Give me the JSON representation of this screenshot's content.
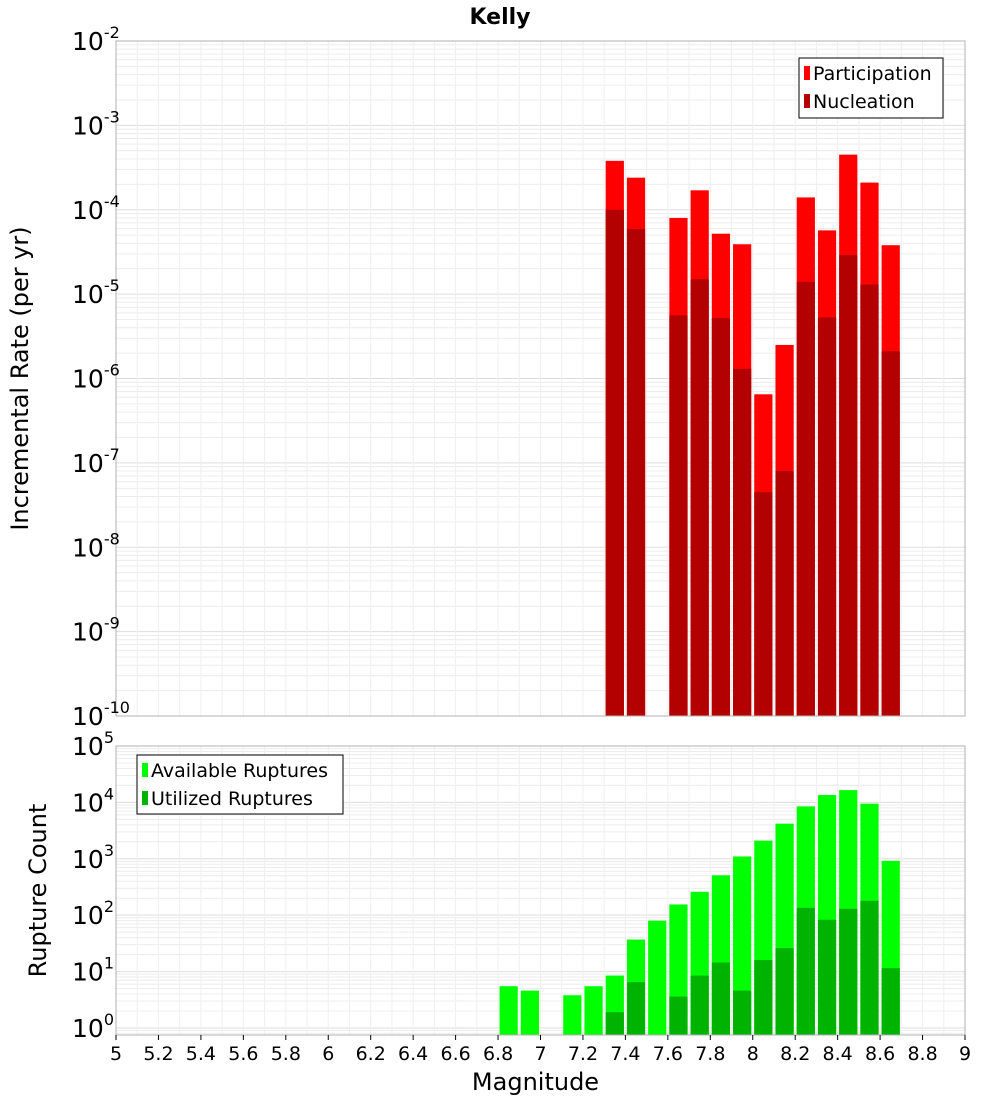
{
  "chart_data": [
    {
      "type": "bar",
      "title": "Kelly",
      "ylabel": "Incremental Rate (per yr)",
      "xlabel": "",
      "yscale": "log",
      "ylim": [
        1e-10,
        0.01
      ],
      "xlim": [
        5,
        9
      ],
      "bin_width": 0.1,
      "y_ticks": [
        {
          "base": "10",
          "exp": "-2"
        },
        {
          "base": "10",
          "exp": "-3"
        },
        {
          "base": "10",
          "exp": "-4"
        },
        {
          "base": "10",
          "exp": "-5"
        },
        {
          "base": "10",
          "exp": "-6"
        },
        {
          "base": "10",
          "exp": "-7"
        },
        {
          "base": "10",
          "exp": "-8"
        },
        {
          "base": "10",
          "exp": "-9"
        },
        {
          "base": "10",
          "exp": "-10"
        }
      ],
      "legend": {
        "position": "top-right",
        "entries": [
          "Participation",
          "Nucleation"
        ]
      },
      "x": [
        7.35,
        7.45,
        7.65,
        7.75,
        7.85,
        7.95,
        8.05,
        8.15,
        8.25,
        8.35,
        8.45,
        8.55,
        8.65
      ],
      "series": [
        {
          "name": "Participation",
          "color": "#ff0000",
          "values": [
            0.00038,
            0.00024,
            8e-05,
            0.00017,
            5.2e-05,
            3.9e-05,
            6.5e-07,
            2.5e-06,
            0.00014,
            5.7e-05,
            0.00045,
            0.00021,
            3.8e-05
          ]
        },
        {
          "name": "Nucleation",
          "color": "#b30000",
          "values": [
            0.0001,
            5.9e-05,
            5.6e-06,
            1.5e-05,
            5.2e-06,
            1.3e-06,
            4.5e-08,
            8e-08,
            1.4e-05,
            5.3e-06,
            2.9e-05,
            1.3e-05,
            2.1e-06
          ]
        }
      ]
    },
    {
      "type": "bar",
      "title": "",
      "ylabel": "Rupture Count",
      "xlabel": "Magnitude",
      "yscale": "log",
      "ylim": [
        0.75,
        100000.0
      ],
      "xlim": [
        5,
        9
      ],
      "bin_width": 0.1,
      "y_ticks": [
        {
          "base": "10",
          "exp": "5"
        },
        {
          "base": "10",
          "exp": "4"
        },
        {
          "base": "10",
          "exp": "3"
        },
        {
          "base": "10",
          "exp": "2"
        },
        {
          "base": "10",
          "exp": "1"
        },
        {
          "base": "10",
          "exp": "0"
        }
      ],
      "x_ticks": [
        "5",
        "5.2",
        "5.4",
        "5.6",
        "5.8",
        "6",
        "6.2",
        "6.4",
        "6.6",
        "6.8",
        "7",
        "7.2",
        "7.4",
        "7.6",
        "7.8",
        "8",
        "8.2",
        "8.4",
        "8.6",
        "8.8",
        "9"
      ],
      "legend": {
        "position": "top-left",
        "entries": [
          "Available Ruptures",
          "Utilized Ruptures"
        ]
      },
      "x": [
        6.85,
        6.95,
        7.15,
        7.25,
        7.35,
        7.45,
        7.55,
        7.65,
        7.75,
        7.85,
        7.95,
        8.05,
        8.15,
        8.25,
        8.35,
        8.45,
        8.55,
        8.65
      ],
      "series": [
        {
          "name": "Available Ruptures",
          "color": "#00ff00",
          "values": [
            5.5,
            4.6,
            3.8,
            5.5,
            8.5,
            37,
            80,
            155,
            260,
            510,
            1100,
            2100,
            4200,
            8500,
            13500,
            16500,
            9500,
            920
          ]
        },
        {
          "name": "Utilized Ruptures",
          "color": "#00b300",
          "values": [
            0,
            0,
            0,
            0,
            1.9,
            6.5,
            0,
            3.6,
            8.5,
            14.5,
            4.6,
            16,
            26,
            135,
            83,
            130,
            180,
            11.5
          ]
        }
      ]
    }
  ]
}
